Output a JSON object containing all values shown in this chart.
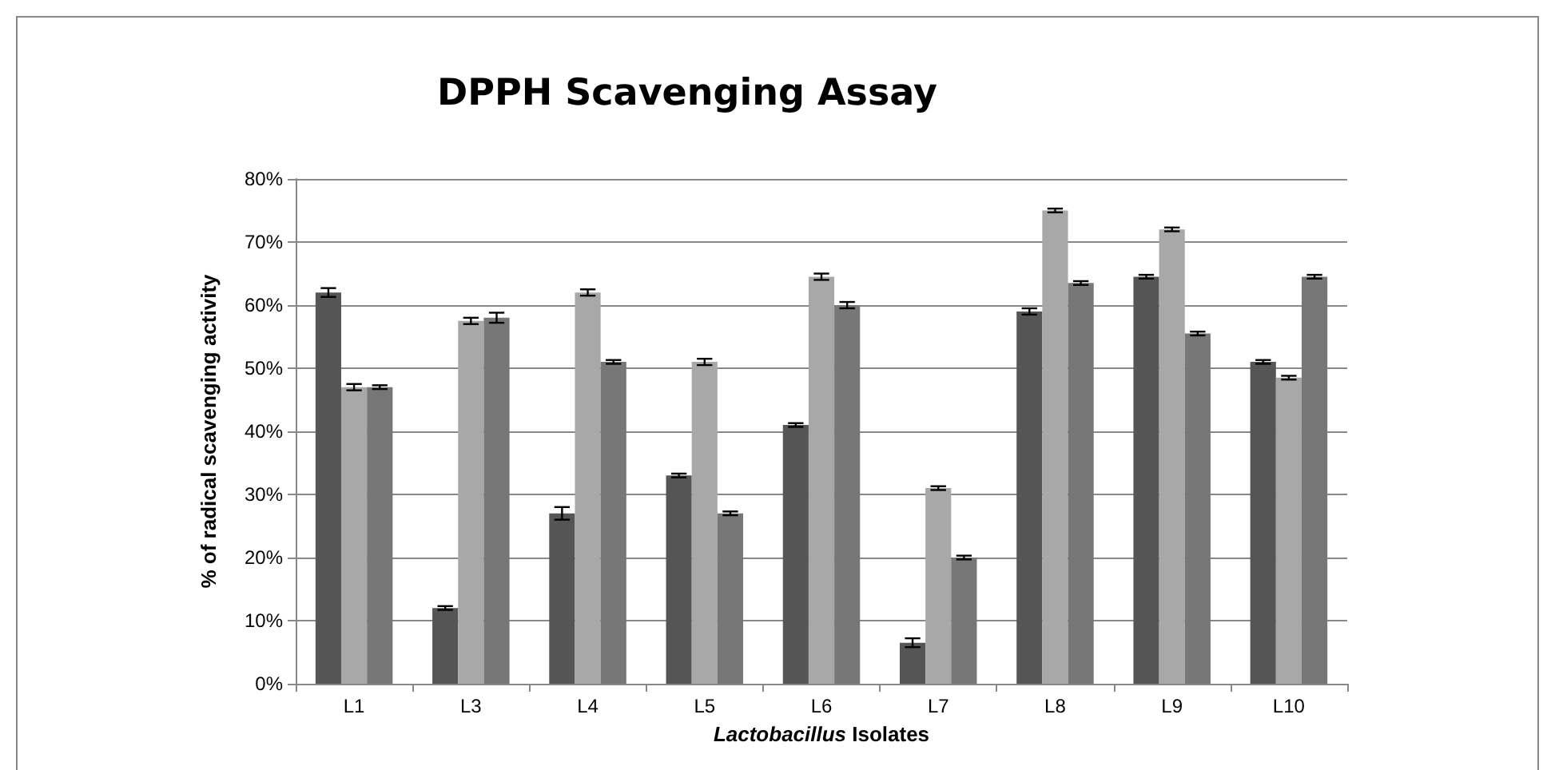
{
  "chart_data": {
    "type": "bar",
    "title": "DPPH Scavenging Assay",
    "xlabel": "Lactobacillus Isolates",
    "ylabel": "% of radical scavenging activity",
    "categories": [
      "L1",
      "L3",
      "L4",
      "L5",
      "L6",
      "L7",
      "L8",
      "L9",
      "L10"
    ],
    "series": [
      {
        "color": "#555555",
        "values": [
          62,
          12,
          27,
          33,
          41,
          6.5,
          59,
          64.5,
          51
        ],
        "errors": [
          0.7,
          0.3,
          1,
          0.3,
          0.3,
          0.7,
          0.5,
          0.3,
          0.3
        ]
      },
      {
        "color": "#a8a8a8",
        "values": [
          47,
          57.5,
          62,
          51,
          64.5,
          31,
          75,
          72,
          48.5
        ],
        "errors": [
          0.5,
          0.5,
          0.5,
          0.5,
          0.5,
          0.3,
          0.3,
          0.3,
          0.3
        ]
      },
      {
        "color": "#777777",
        "values": [
          47,
          58,
          51,
          27,
          60,
          20,
          63.5,
          55.5,
          64.5
        ],
        "errors": [
          0.3,
          0.8,
          0.3,
          0.3,
          0.5,
          0.3,
          0.3,
          0.3,
          0.3
        ]
      }
    ],
    "ylim": [
      0,
      80
    ],
    "yticks": [
      {
        "value": 0,
        "label": "0%"
      },
      {
        "value": 10,
        "label": "10%"
      },
      {
        "value": 20,
        "label": "20%"
      },
      {
        "value": 30,
        "label": "30%"
      },
      {
        "value": 40,
        "label": "40%"
      },
      {
        "value": 50,
        "label": "50%"
      },
      {
        "value": 60,
        "label": "60%"
      },
      {
        "value": 70,
        "label": "70%"
      },
      {
        "value": 80,
        "label": "80%"
      }
    ],
    "grid": "y"
  }
}
